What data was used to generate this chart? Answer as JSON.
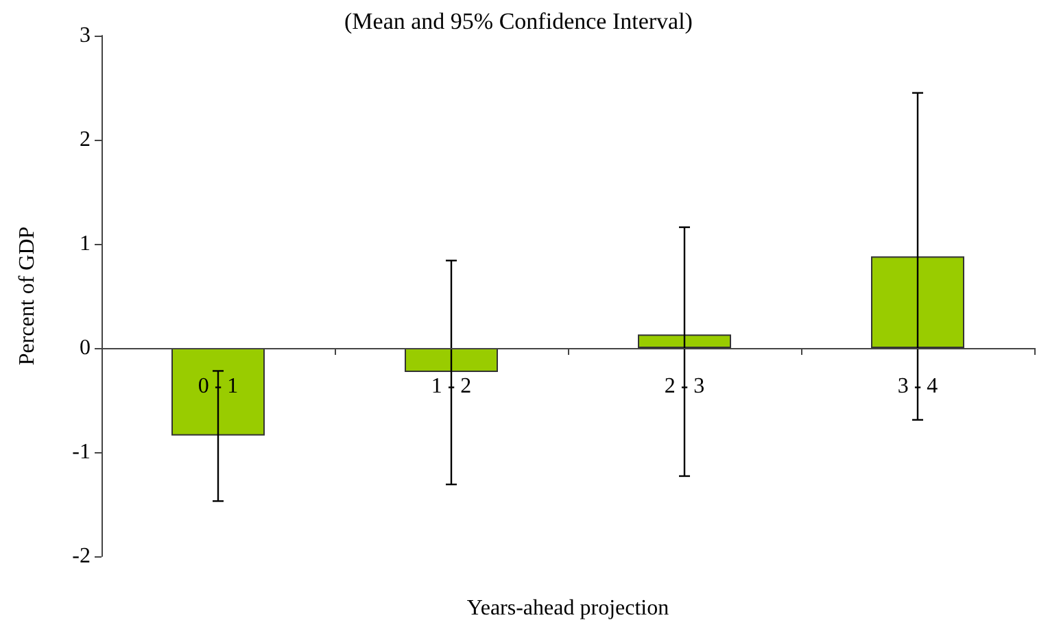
{
  "chart_data": {
    "type": "bar",
    "subtitle": "(Mean and 95% Confidence Interval)",
    "xlabel": "Years-ahead projection",
    "ylabel": "Percent of GDP",
    "categories": [
      "0 - 1",
      "1 - 2",
      "2 - 3",
      "3 - 4"
    ],
    "values": [
      -0.84,
      -0.23,
      0.13,
      0.88
    ],
    "errors": [
      [
        -1.47,
        -0.22
      ],
      [
        -1.31,
        0.84
      ],
      [
        -1.23,
        1.16
      ],
      [
        -0.69,
        2.45
      ]
    ],
    "color": "#99cc00",
    "ylim": [
      -2,
      3
    ],
    "yticks": [
      -2,
      -1,
      0,
      1,
      2,
      3
    ],
    "grid": false
  }
}
